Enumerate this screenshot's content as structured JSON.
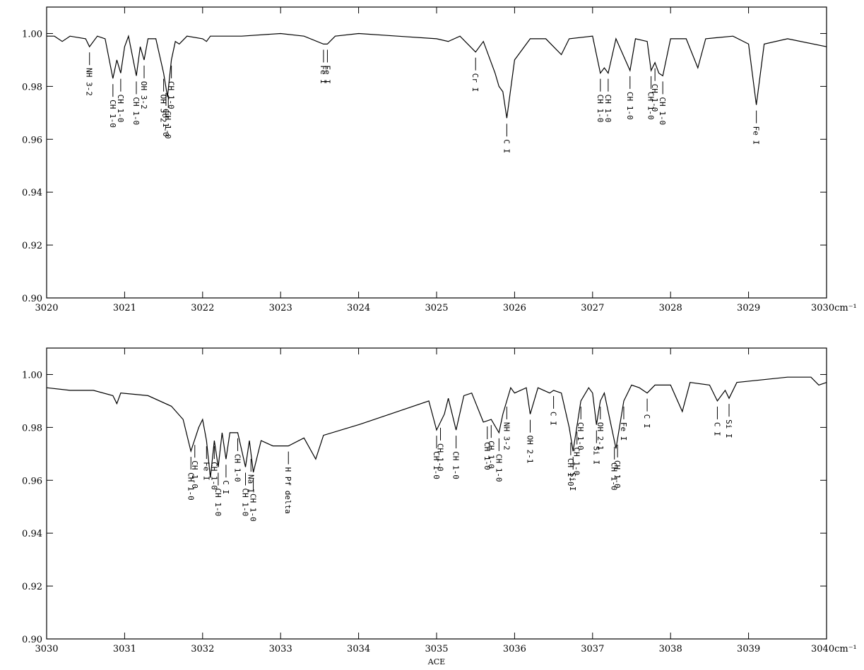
{
  "chart_data": [
    {
      "type": "line",
      "xlim": [
        3020,
        3030
      ],
      "ylim": [
        0.9,
        1.01
      ],
      "xticks": [
        3020,
        3021,
        3022,
        3023,
        3024,
        3025,
        3026,
        3027,
        3028,
        3029,
        {
          "value": 3030,
          "label": "3030cm⁻¹"
        }
      ],
      "yticks": [
        {
          "value": 0.9,
          "label": "0.90"
        },
        {
          "value": 0.92,
          "label": "0.92"
        },
        {
          "value": 0.94,
          "label": "0.94"
        },
        {
          "value": 0.96,
          "label": "0.96"
        },
        {
          "value": 0.98,
          "label": "0.98"
        },
        {
          "value": 1.0,
          "label": "1.00"
        }
      ],
      "color": "#000000",
      "x": [
        3020,
        3020.1,
        3020.2,
        3020.3,
        3020.5,
        3020.55,
        3020.65,
        3020.75,
        3020.85,
        3020.9,
        3020.95,
        3021.0,
        3021.05,
        3021.15,
        3021.2,
        3021.25,
        3021.3,
        3021.4,
        3021.5,
        3021.55,
        3021.6,
        3021.65,
        3021.7,
        3021.8,
        3022.0,
        3022.05,
        3022.1,
        3022.5,
        3023.0,
        3023.3,
        3023.55,
        3023.6,
        3023.7,
        3024.0,
        3024.5,
        3025.0,
        3025.15,
        3025.3,
        3025.5,
        3025.6,
        3025.75,
        3025.8,
        3025.85,
        3025.9,
        3026.0,
        3026.2,
        3026.4,
        3026.5,
        3026.6,
        3026.7,
        3027.0,
        3027.1,
        3027.15,
        3027.2,
        3027.3,
        3027.48,
        3027.55,
        3027.7,
        3027.75,
        3027.8,
        3027.85,
        3027.9,
        3028.0,
        3028.2,
        3028.35,
        3028.45,
        3028.8,
        3029.0,
        3029.1,
        3029.2,
        3029.5,
        3030.0
      ],
      "values": [
        0.999,
        0.999,
        0.997,
        0.999,
        0.998,
        0.995,
        0.999,
        0.998,
        0.983,
        0.99,
        0.985,
        0.995,
        0.999,
        0.984,
        0.995,
        0.99,
        0.998,
        0.998,
        0.985,
        0.976,
        0.99,
        0.997,
        0.996,
        0.999,
        0.998,
        0.997,
        0.999,
        0.999,
        1.0,
        0.999,
        0.996,
        0.996,
        0.999,
        1.0,
        0.999,
        0.998,
        0.997,
        0.999,
        0.993,
        0.997,
        0.985,
        0.98,
        0.978,
        0.968,
        0.99,
        0.998,
        0.998,
        0.995,
        0.992,
        0.998,
        0.999,
        0.985,
        0.987,
        0.985,
        0.998,
        0.986,
        0.998,
        0.997,
        0.986,
        0.989,
        0.985,
        0.984,
        0.998,
        0.998,
        0.987,
        0.998,
        0.999,
        0.996,
        0.973,
        0.996,
        0.998,
        0.995
      ],
      "annotations": [
        {
          "x": 3020.55,
          "label": "NH 3-2"
        },
        {
          "x": 3020.85,
          "label": "CH 1-0"
        },
        {
          "x": 3020.95,
          "label": "CH 1-0"
        },
        {
          "x": 3021.15,
          "label": "CH 1-0"
        },
        {
          "x": 3021.25,
          "label": "OH 3-2"
        },
        {
          "x": 3021.5,
          "label": "OH 3-2"
        },
        {
          "x": 3021.53,
          "label": "CH 1-0"
        },
        {
          "x": 3021.56,
          "label": "CH 1-0"
        },
        {
          "x": 3021.6,
          "label": "CH 1-0"
        },
        {
          "x": 3023.55,
          "label": "Fe I"
        },
        {
          "x": 3023.6,
          "label": "Fe I"
        },
        {
          "x": 3025.5,
          "label": "Cr I"
        },
        {
          "x": 3025.9,
          "label": "C I"
        },
        {
          "x": 3027.1,
          "label": "CH 1-0"
        },
        {
          "x": 3027.2,
          "label": "CH 1-0"
        },
        {
          "x": 3027.48,
          "label": "CH 1-0"
        },
        {
          "x": 3027.75,
          "label": "CH 1-0"
        },
        {
          "x": 3027.8,
          "label": "CH 1-0"
        },
        {
          "x": 3027.9,
          "label": "CH 1-0"
        },
        {
          "x": 3029.1,
          "label": "Fe I"
        }
      ]
    },
    {
      "type": "line",
      "xlabel": "ACE",
      "xlim": [
        3030,
        3040
      ],
      "ylim": [
        0.9,
        1.01
      ],
      "xticks": [
        3030,
        3031,
        3032,
        3033,
        3034,
        3035,
        3036,
        3037,
        3038,
        3039,
        {
          "value": 3040,
          "label": "3040cm⁻¹"
        }
      ],
      "yticks": [
        {
          "value": 0.9,
          "label": "0.90"
        },
        {
          "value": 0.92,
          "label": "0.92"
        },
        {
          "value": 0.94,
          "label": "0.94"
        },
        {
          "value": 0.96,
          "label": "0.96"
        },
        {
          "value": 0.98,
          "label": "0.98"
        },
        {
          "value": 1.0,
          "label": "1.00"
        }
      ],
      "color": "#000000",
      "x": [
        3030,
        3030.3,
        3030.6,
        3030.85,
        3030.9,
        3030.95,
        3031.3,
        3031.6,
        3031.75,
        3031.85,
        3031.95,
        3032.0,
        3032.05,
        3032.1,
        3032.15,
        3032.2,
        3032.25,
        3032.3,
        3032.35,
        3032.45,
        3032.55,
        3032.6,
        3032.65,
        3032.75,
        3032.9,
        3033.1,
        3033.3,
        3033.45,
        3033.55,
        3034.0,
        3034.5,
        3034.9,
        3035.0,
        3035.1,
        3035.15,
        3035.25,
        3035.35,
        3035.45,
        3035.6,
        3035.7,
        3035.8,
        3035.85,
        3035.95,
        3036.0,
        3036.15,
        3036.2,
        3036.3,
        3036.45,
        3036.5,
        3036.6,
        3036.7,
        3036.75,
        3036.85,
        3036.95,
        3037.0,
        3037.05,
        3037.1,
        3037.15,
        3037.3,
        3037.4,
        3037.5,
        3037.6,
        3037.7,
        3037.8,
        3038.0,
        3038.15,
        3038.25,
        3038.5,
        3038.6,
        3038.7,
        3038.75,
        3038.85,
        3039.5,
        3039.8,
        3039.9,
        3040.0
      ],
      "values": [
        0.995,
        0.994,
        0.994,
        0.992,
        0.989,
        0.993,
        0.992,
        0.988,
        0.983,
        0.971,
        0.98,
        0.983,
        0.975,
        0.961,
        0.975,
        0.965,
        0.978,
        0.968,
        0.978,
        0.978,
        0.965,
        0.975,
        0.963,
        0.975,
        0.973,
        0.973,
        0.976,
        0.968,
        0.977,
        0.981,
        0.986,
        0.99,
        0.979,
        0.985,
        0.991,
        0.979,
        0.992,
        0.993,
        0.982,
        0.983,
        0.978,
        0.985,
        0.995,
        0.993,
        0.995,
        0.985,
        0.995,
        0.993,
        0.994,
        0.993,
        0.98,
        0.971,
        0.99,
        0.995,
        0.993,
        0.981,
        0.99,
        0.993,
        0.972,
        0.99,
        0.996,
        0.995,
        0.993,
        0.996,
        0.996,
        0.986,
        0.997,
        0.996,
        0.99,
        0.994,
        0.991,
        0.997,
        0.999,
        0.999,
        0.996,
        0.997
      ],
      "annotations": [
        {
          "x": 3031.85,
          "label": "CH 1-0"
        },
        {
          "x": 3031.9,
          "label": "CH 1-0"
        },
        {
          "x": 3032.05,
          "label": "Fe I"
        },
        {
          "x": 3032.15,
          "label": "CH 1-0"
        },
        {
          "x": 3032.2,
          "label": "CH 1-0"
        },
        {
          "x": 3032.3,
          "label": "C I"
        },
        {
          "x": 3032.45,
          "label": "CH 1-0"
        },
        {
          "x": 3032.55,
          "label": "CH 1-0"
        },
        {
          "x": 3032.62,
          "label": "Na I"
        },
        {
          "x": 3032.65,
          "label": "CH 1-0"
        },
        {
          "x": 3033.1,
          "label": "H Pf delta"
        },
        {
          "x": 3035.0,
          "label": "CH 1-0"
        },
        {
          "x": 3035.05,
          "label": "CH 1-0"
        },
        {
          "x": 3035.25,
          "label": "CH 1-0"
        },
        {
          "x": 3035.65,
          "label": "CH 1-0"
        },
        {
          "x": 3035.7,
          "label": "CH 1-0"
        },
        {
          "x": 3035.8,
          "label": "CH 1-0"
        },
        {
          "x": 3035.9,
          "label": "NH 3-2"
        },
        {
          "x": 3036.2,
          "label": "OH 2-1"
        },
        {
          "x": 3036.5,
          "label": "C I"
        },
        {
          "x": 3036.72,
          "label": "CH 1-0"
        },
        {
          "x": 3036.75,
          "label": "Si I"
        },
        {
          "x": 3036.8,
          "label": "CH 1-0"
        },
        {
          "x": 3036.85,
          "label": "CH 1-0"
        },
        {
          "x": 3037.05,
          "label": "Si I"
        },
        {
          "x": 3037.1,
          "label": "OH 2-1"
        },
        {
          "x": 3037.28,
          "label": "CH 1-0"
        },
        {
          "x": 3037.32,
          "label": "CH 1-0"
        },
        {
          "x": 3037.4,
          "label": "Fe I"
        },
        {
          "x": 3037.7,
          "label": "C I"
        },
        {
          "x": 3038.6,
          "label": "C I"
        },
        {
          "x": 3038.75,
          "label": "Si I"
        }
      ]
    }
  ]
}
